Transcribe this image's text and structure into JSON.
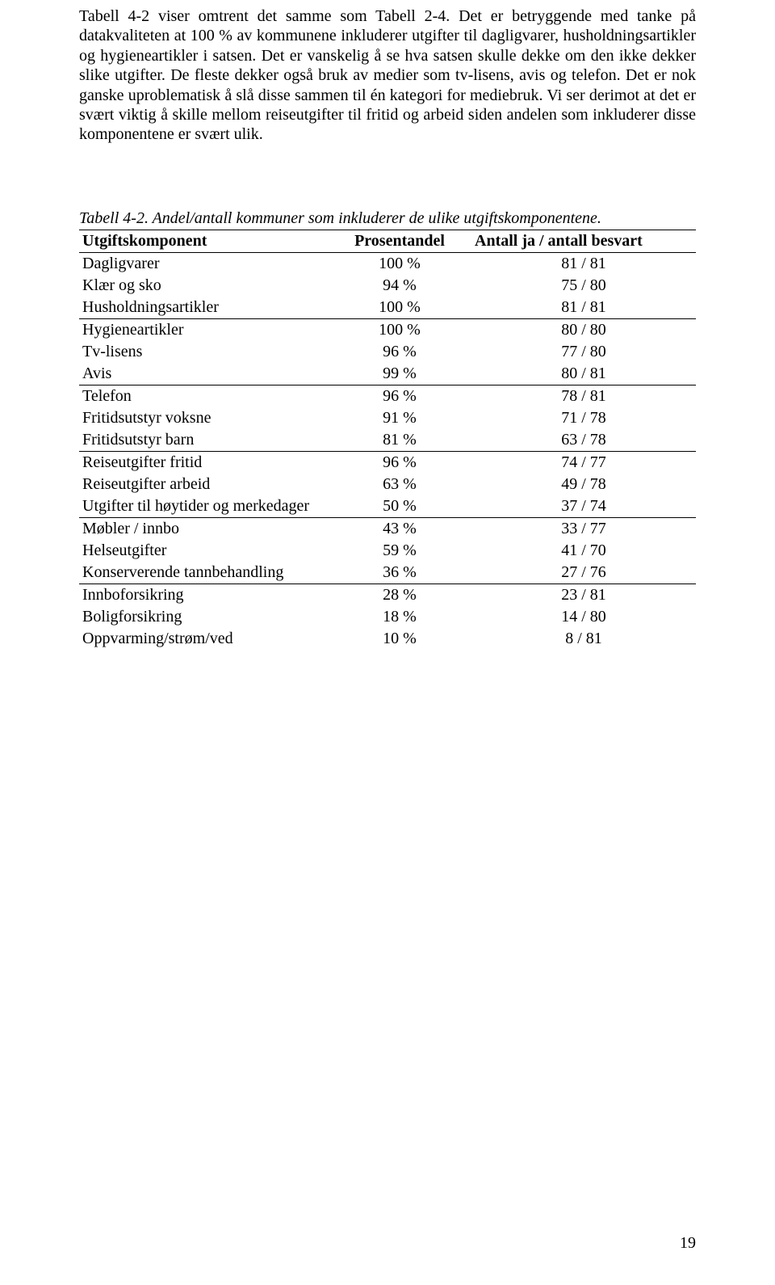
{
  "paragraph": "Tabell 4-2 viser omtrent det samme som Tabell 2-4. Det er betryggende med tanke på datakvaliteten at 100 % av kommunene inkluderer utgifter til dagligvarer, husholdningsartikler og hygieneartikler i satsen. Det er vanskelig å se hva satsen skulle dekke om den ikke dekker slike utgifter. De fleste dekker også bruk av medier som tv-lisens, avis og telefon. Det er nok ganske uproblematisk å slå disse sammen til én kategori for mediebruk. Vi ser derimot at det er svært viktig å skille mellom reiseutgifter til fritid og arbeid siden andelen som inkluderer disse komponentene er svært ulik.",
  "table": {
    "caption": "Tabell 4-2. Andel/antall kommuner som inkluderer de ulike utgiftskomponentene.",
    "columns": {
      "component": "Utgiftskomponent",
      "percent": "Prosentandel",
      "count": "Antall ja / antall besvart"
    },
    "groups": [
      [
        {
          "label": "Dagligvarer",
          "percent": "100 %",
          "count": "81 / 81"
        },
        {
          "label": "Klær og sko",
          "percent": "94 %",
          "count": "75 / 80"
        },
        {
          "label": "Husholdningsartikler",
          "percent": "100 %",
          "count": "81 / 81"
        }
      ],
      [
        {
          "label": "Hygieneartikler",
          "percent": "100 %",
          "count": "80 / 80"
        },
        {
          "label": "Tv-lisens",
          "percent": "96 %",
          "count": "77 / 80"
        },
        {
          "label": "Avis",
          "percent": "99 %",
          "count": "80 / 81"
        }
      ],
      [
        {
          "label": "Telefon",
          "percent": "96 %",
          "count": "78 / 81"
        },
        {
          "label": "Fritidsutstyr voksne",
          "percent": "91 %",
          "count": "71 / 78"
        },
        {
          "label": "Fritidsutstyr barn",
          "percent": "81 %",
          "count": "63 / 78"
        }
      ],
      [
        {
          "label": "Reiseutgifter fritid",
          "percent": "96 %",
          "count": "74 / 77"
        },
        {
          "label": "Reiseutgifter arbeid",
          "percent": "63 %",
          "count": "49 / 78"
        },
        {
          "label": "Utgifter til høytider og merkedager",
          "percent": "50 %",
          "count": "37 / 74"
        }
      ],
      [
        {
          "label": "Møbler / innbo",
          "percent": "43 %",
          "count": "33 / 77"
        },
        {
          "label": "Helseutgifter",
          "percent": "59 %",
          "count": "41 / 70"
        },
        {
          "label": "Konserverende tannbehandling",
          "percent": "36 %",
          "count": "27 / 76"
        }
      ],
      [
        {
          "label": "Innboforsikring",
          "percent": "28 %",
          "count": "23 / 81"
        },
        {
          "label": "Boligforsikring",
          "percent": "18 %",
          "count": "14 / 80"
        },
        {
          "label": "Oppvarming/strøm/ved",
          "percent": "10 %",
          "count": "8 / 81"
        }
      ]
    ]
  },
  "page_number": "19"
}
